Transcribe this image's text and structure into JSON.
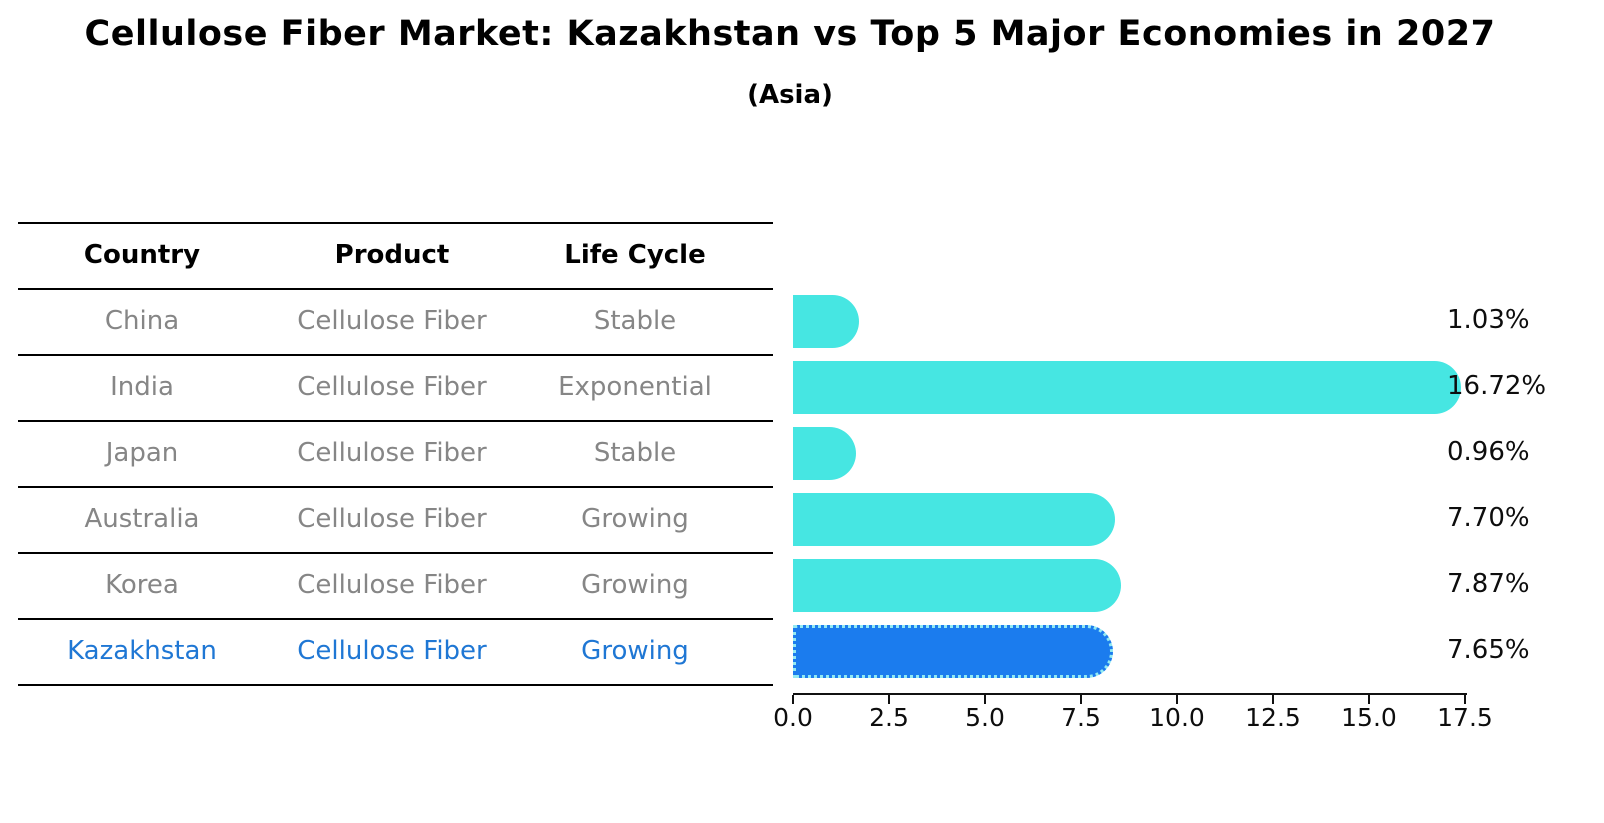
{
  "title": "Cellulose Fiber Market: Kazakhstan vs Top 5 Major Economies in 2027",
  "subtitle": "(Asia)",
  "table": {
    "headers": [
      "Country",
      "Product",
      "Life Cycle"
    ],
    "rows": [
      {
        "country": "China",
        "product": "Cellulose Fiber",
        "life_cycle": "Stable"
      },
      {
        "country": "India",
        "product": "Cellulose Fiber",
        "life_cycle": "Exponential"
      },
      {
        "country": "Japan",
        "product": "Cellulose Fiber",
        "life_cycle": "Stable"
      },
      {
        "country": "Australia",
        "product": "Cellulose Fiber",
        "life_cycle": "Growing"
      },
      {
        "country": "Korea",
        "product": "Cellulose Fiber",
        "life_cycle": "Growing"
      },
      {
        "country": "Kazakhstan",
        "product": "Cellulose Fiber",
        "life_cycle": "Growing"
      }
    ]
  },
  "chart_data": {
    "type": "bar",
    "orientation": "horizontal",
    "title": "Cellulose Fiber Market: Kazakhstan vs Top 5 Major Economies in 2027",
    "subtitle": "(Asia)",
    "categories": [
      "China",
      "India",
      "Japan",
      "Australia",
      "Korea",
      "Kazakhstan"
    ],
    "values": [
      1.03,
      16.72,
      0.96,
      7.7,
      7.87,
      7.65
    ],
    "value_labels": [
      "1.03%",
      "16.72%",
      "0.96%",
      "7.70%",
      "7.87%",
      "7.65%"
    ],
    "xticks": [
      "0.0",
      "2.5",
      "5.0",
      "7.5",
      "10.0",
      "12.5",
      "15.0",
      "17.5"
    ],
    "xlim": [
      0,
      17.5
    ],
    "grid": false,
    "legend": "none",
    "bar_color": "#46e6e2",
    "highlight_color": "#1b7cee",
    "highlight_index": 5
  },
  "colors": {
    "gray_text": "#868686",
    "highlight_text": "#1f77d4",
    "line_color": "#000000"
  }
}
